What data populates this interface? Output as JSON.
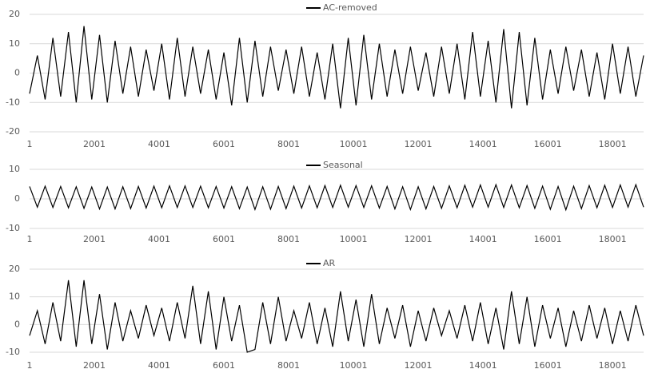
{
  "chart_data": [
    {
      "type": "line",
      "legend": "top",
      "grid": true,
      "xlim": [
        1,
        18961
      ],
      "xticks": [
        1,
        2001,
        4001,
        6001,
        8001,
        10001,
        12001,
        14001,
        16001,
        18001
      ],
      "ylim": [
        -20,
        20
      ],
      "yticks": [
        -20,
        -10,
        0,
        10,
        20
      ],
      "x": [
        1,
        241,
        481,
        721,
        961,
        1201,
        1441,
        1681,
        1921,
        2161,
        2401,
        2641,
        2881,
        3121,
        3361,
        3601,
        3841,
        4081,
        4321,
        4561,
        4801,
        5041,
        5281,
        5521,
        5761,
        6001,
        6241,
        6481,
        6721,
        6961,
        7201,
        7441,
        7681,
        7921,
        8161,
        8401,
        8641,
        8881,
        9121,
        9361,
        9601,
        9841,
        10081,
        10321,
        10561,
        10801,
        11041,
        11281,
        11521,
        11761,
        12001,
        12241,
        12481,
        12721,
        12961,
        13201,
        13441,
        13681,
        13921,
        14161,
        14401,
        14641,
        14881,
        15121,
        15361,
        15601,
        15841,
        16081,
        16321,
        16561,
        16801,
        17041,
        17281,
        17521,
        17761,
        18001,
        18241,
        18481,
        18721,
        18961
      ],
      "series": [
        {
          "name": "AC-removed",
          "color": "#000000",
          "values": [
            -7,
            6,
            -9,
            12,
            -8,
            14,
            -10,
            16,
            -9,
            13,
            -10,
            11,
            -7,
            9,
            -8,
            8,
            -6,
            10,
            -9,
            12,
            -8,
            9,
            -7,
            8,
            -9,
            7,
            -11,
            12,
            -10,
            11,
            -8,
            9,
            -6,
            8,
            -7,
            9,
            -8,
            7,
            -9,
            10,
            -12,
            12,
            -11,
            13,
            -9,
            10,
            -8,
            8,
            -7,
            9,
            -6,
            7,
            -8,
            9,
            -7,
            10,
            -9,
            14,
            -8,
            11,
            -10,
            15,
            -12,
            14,
            -11,
            12,
            -9,
            8,
            -7,
            9,
            -6,
            8,
            -8,
            7,
            -9,
            10,
            -7,
            9,
            -8,
            6
          ]
        }
      ]
    },
    {
      "type": "line",
      "legend": "top",
      "grid": true,
      "xlim": [
        1,
        18961
      ],
      "xticks": [
        1,
        2001,
        4001,
        6001,
        8001,
        10001,
        12001,
        14001,
        16001,
        18001
      ],
      "ylim": [
        -10,
        10
      ],
      "yticks": [
        -10,
        0,
        10
      ],
      "x": [
        1,
        241,
        481,
        721,
        961,
        1201,
        1441,
        1681,
        1921,
        2161,
        2401,
        2641,
        2881,
        3121,
        3361,
        3601,
        3841,
        4081,
        4321,
        4561,
        4801,
        5041,
        5281,
        5521,
        5761,
        6001,
        6241,
        6481,
        6721,
        6961,
        7201,
        7441,
        7681,
        7921,
        8161,
        8401,
        8641,
        8881,
        9121,
        9361,
        9601,
        9841,
        10081,
        10321,
        10561,
        10801,
        11041,
        11281,
        11521,
        11761,
        12001,
        12241,
        12481,
        12721,
        12961,
        13201,
        13441,
        13681,
        13921,
        14161,
        14401,
        14641,
        14881,
        15121,
        15361,
        15601,
        15841,
        16081,
        16321,
        16561,
        16801,
        17041,
        17281,
        17521,
        17761,
        18001,
        18241,
        18481,
        18721,
        18961
      ],
      "series": [
        {
          "name": "Seasonal",
          "color": "#000000",
          "values": [
            4.2,
            -2.8,
            4.3,
            -2.9,
            4.2,
            -3,
            4.1,
            -3.2,
            4,
            -3.4,
            4,
            -3.4,
            4.1,
            -3.3,
            4.2,
            -3.1,
            4.3,
            -3,
            4.4,
            -2.9,
            4.4,
            -2.9,
            4.3,
            -3,
            4.2,
            -3.1,
            4.1,
            -3.3,
            4,
            -3.6,
            4.1,
            -3.5,
            4.2,
            -3.3,
            4.3,
            -3.1,
            4.4,
            -3,
            4.5,
            -2.9,
            4.6,
            -2.8,
            4.5,
            -2.9,
            4.4,
            -3.1,
            4.2,
            -3.4,
            4.1,
            -3.6,
            4.1,
            -3.4,
            4.2,
            -3.2,
            4.4,
            -3,
            4.6,
            -2.8,
            4.7,
            -2.8,
            4.8,
            -2.9,
            4.7,
            -3,
            4.5,
            -3.2,
            4.3,
            -3.5,
            4.2,
            -3.7,
            4.3,
            -3.3,
            4.5,
            -3,
            4.6,
            -2.9,
            4.7,
            -2.8,
            4.8,
            -2.8
          ]
        }
      ]
    },
    {
      "type": "line",
      "legend": "top",
      "grid": true,
      "xlim": [
        1,
        18961
      ],
      "xticks": [
        1,
        2001,
        4001,
        6001,
        8001,
        10001,
        12001,
        14001,
        16001,
        18001
      ],
      "ylim": [
        -10,
        20
      ],
      "yticks": [
        -10,
        0,
        10,
        20
      ],
      "x": [
        1,
        241,
        481,
        721,
        961,
        1201,
        1441,
        1681,
        1921,
        2161,
        2401,
        2641,
        2881,
        3121,
        3361,
        3601,
        3841,
        4081,
        4321,
        4561,
        4801,
        5041,
        5281,
        5521,
        5761,
        6001,
        6241,
        6481,
        6721,
        6961,
        7201,
        7441,
        7681,
        7921,
        8161,
        8401,
        8641,
        8881,
        9121,
        9361,
        9601,
        9841,
        10081,
        10321,
        10561,
        10801,
        11041,
        11281,
        11521,
        11761,
        12001,
        12241,
        12481,
        12721,
        12961,
        13201,
        13441,
        13681,
        13921,
        14161,
        14401,
        14641,
        14881,
        15121,
        15361,
        15601,
        15841,
        16081,
        16321,
        16561,
        16801,
        17041,
        17281,
        17521,
        17761,
        18001,
        18241,
        18481,
        18721,
        18961
      ],
      "series": [
        {
          "name": "AR",
          "color": "#000000",
          "values": [
            -4,
            5,
            -7,
            8,
            -6,
            16,
            -8,
            16,
            -7,
            11,
            -9,
            8,
            -6,
            5,
            -5,
            7,
            -4,
            6,
            -6,
            8,
            -5,
            14,
            -7,
            12,
            -9,
            10,
            -6,
            7,
            -10,
            -9,
            8,
            -7,
            10,
            -6,
            5,
            -5,
            8,
            -7,
            6,
            -8,
            12,
            -6,
            9,
            -8,
            11,
            -7,
            6,
            -5,
            7,
            -8,
            5,
            -6,
            6,
            -4,
            5,
            -5,
            7,
            -6,
            8,
            -7,
            6,
            -9,
            12,
            -7,
            10,
            -8,
            7,
            -5,
            6,
            -8,
            5,
            -6,
            7,
            -5,
            6,
            -7,
            5,
            -6,
            7,
            -4
          ]
        }
      ]
    }
  ]
}
